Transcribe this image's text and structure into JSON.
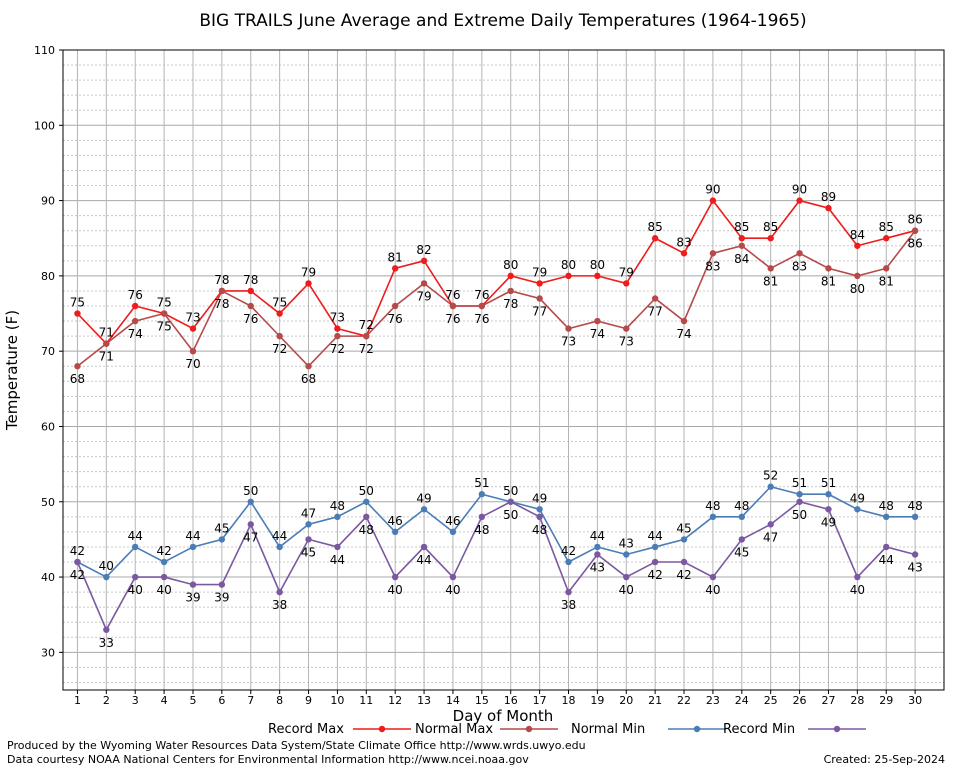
{
  "chart_data": {
    "type": "line",
    "title": "BIG TRAILS June Average and Extreme Daily Temperatures (1964-1965)",
    "xlabel": "Day of Month",
    "ylabel": "Temperature (F)",
    "ylim": [
      25,
      110
    ],
    "yticks": [
      30,
      40,
      50,
      60,
      70,
      80,
      90,
      100,
      110
    ],
    "x": [
      1,
      2,
      3,
      4,
      5,
      6,
      7,
      8,
      9,
      10,
      11,
      12,
      13,
      14,
      15,
      16,
      17,
      18,
      19,
      20,
      21,
      22,
      23,
      24,
      25,
      26,
      27,
      28,
      29,
      30
    ],
    "grid": true,
    "legend_position": "bottom",
    "series": [
      {
        "name": "Record Max",
        "color": "#ee1c1c",
        "values": [
          75,
          71,
          76,
          75,
          73,
          78,
          78,
          75,
          79,
          73,
          72,
          81,
          82,
          76,
          76,
          80,
          79,
          80,
          80,
          79,
          85,
          83,
          90,
          85,
          85,
          90,
          89,
          84,
          85,
          86
        ]
      },
      {
        "name": "Normal Max",
        "color": "#b54a4a",
        "values": [
          68,
          71,
          74,
          75,
          70,
          78,
          76,
          72,
          68,
          72,
          72,
          76,
          79,
          76,
          76,
          78,
          77,
          73,
          74,
          73,
          77,
          74,
          83,
          84,
          81,
          83,
          81,
          80,
          81,
          86
        ]
      },
      {
        "name": "Normal Min",
        "color": "#4a7db5",
        "values": [
          42,
          40,
          44,
          42,
          44,
          45,
          50,
          44,
          47,
          48,
          50,
          46,
          49,
          46,
          51,
          50,
          49,
          42,
          44,
          43,
          44,
          45,
          48,
          48,
          52,
          51,
          51,
          49,
          48,
          48
        ]
      },
      {
        "name": "Record Min",
        "color": "#7b58a0",
        "values": [
          42,
          33,
          40,
          40,
          39,
          39,
          47,
          38,
          45,
          44,
          48,
          40,
          44,
          40,
          48,
          50,
          48,
          38,
          43,
          40,
          42,
          42,
          40,
          45,
          47,
          50,
          49,
          40,
          44,
          43
        ]
      }
    ]
  },
  "footer": {
    "line1": "Produced by the Wyoming Water Resources Data System/State Climate Office http://www.wrds.uwyo.edu",
    "line2": "Data courtesy NOAA National Centers for Environmental Information http://www.ncei.noaa.gov",
    "created": "Created:  25-Sep-2024"
  }
}
